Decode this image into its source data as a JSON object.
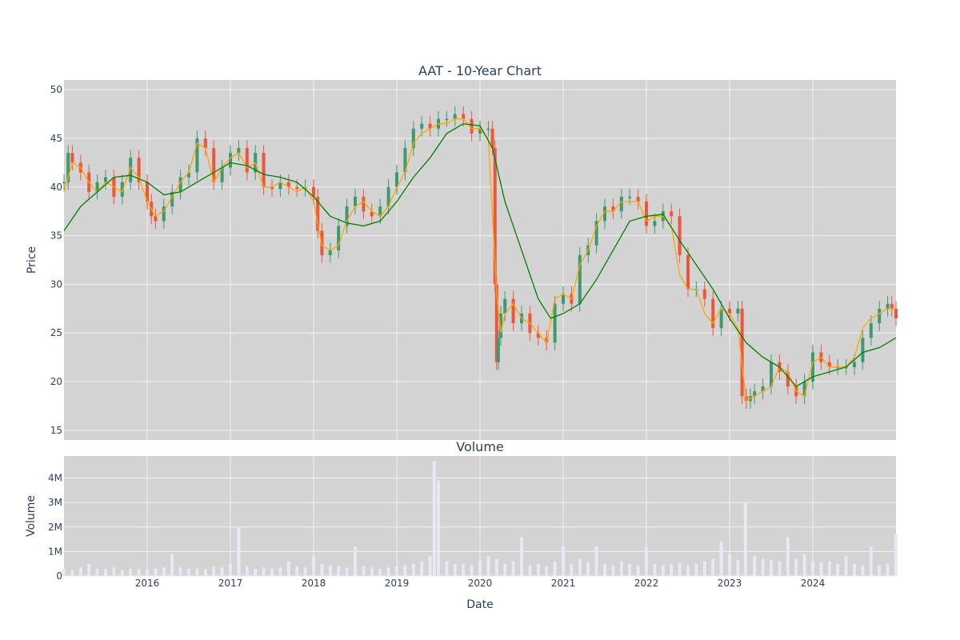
{
  "colors": {
    "plot_background": "#d3d3d3",
    "grid": "#f2f2f2",
    "text": "#2a3f5f",
    "candle_up": "#3d9970",
    "candle_down": "#ef553b",
    "ma_short": "#ffa500",
    "ma_long": "#008000",
    "volume_bars": "#e8e8f3"
  },
  "chart_data": [
    {
      "type": "candlestick",
      "title": "AAT - 10-Year Chart",
      "ylabel": "Price",
      "xlabel": "",
      "ylim": [
        14,
        51
      ],
      "yticks": [
        15,
        20,
        25,
        30,
        35,
        40,
        45,
        50
      ],
      "xlim": [
        2015.0,
        2025.0
      ],
      "grid": true,
      "series": [
        {
          "name": "",
          "style": "candles",
          "x": [
            2015.0,
            2015.05,
            2015.1,
            2015.2,
            2015.3,
            2015.4,
            2015.5,
            2015.6,
            2015.7,
            2015.8,
            2015.9,
            2016.0,
            2016.05,
            2016.1,
            2016.2,
            2016.3,
            2016.4,
            2016.5,
            2016.6,
            2016.7,
            2016.8,
            2016.9,
            2017.0,
            2017.1,
            2017.2,
            2017.3,
            2017.4,
            2017.5,
            2017.6,
            2017.7,
            2017.8,
            2017.9,
            2018.0,
            2018.05,
            2018.1,
            2018.2,
            2018.3,
            2018.4,
            2018.5,
            2018.6,
            2018.7,
            2018.8,
            2018.9,
            2019.0,
            2019.1,
            2019.2,
            2019.3,
            2019.4,
            2019.5,
            2019.6,
            2019.7,
            2019.8,
            2019.9,
            2020.0,
            2020.1,
            2020.15,
            2020.18,
            2020.2,
            2020.22,
            2020.25,
            2020.3,
            2020.4,
            2020.5,
            2020.6,
            2020.7,
            2020.8,
            2020.9,
            2021.0,
            2021.1,
            2021.2,
            2021.3,
            2021.4,
            2021.5,
            2021.6,
            2021.7,
            2021.8,
            2021.9,
            2022.0,
            2022.1,
            2022.2,
            2022.3,
            2022.4,
            2022.5,
            2022.6,
            2022.7,
            2022.8,
            2022.9,
            2023.0,
            2023.1,
            2023.15,
            2023.2,
            2023.25,
            2023.3,
            2023.4,
            2023.5,
            2023.6,
            2023.7,
            2023.8,
            2023.9,
            2024.0,
            2024.1,
            2024.2,
            2024.3,
            2024.4,
            2024.5,
            2024.6,
            2024.7,
            2024.8,
            2024.9,
            2024.95,
            2025.0
          ],
          "values": [
            40.5,
            43.5,
            42.5,
            41.5,
            39.5,
            40.5,
            41.0,
            39.0,
            40.5,
            43.0,
            40.5,
            38.5,
            37.0,
            36.5,
            38.0,
            39.5,
            41.0,
            41.5,
            45.0,
            44.0,
            40.5,
            42.0,
            43.5,
            44.0,
            41.5,
            43.5,
            40.0,
            39.8,
            40.5,
            40.0,
            39.8,
            40.0,
            39.0,
            35.5,
            33.0,
            33.5,
            36.0,
            38.0,
            39.0,
            37.5,
            37.0,
            38.0,
            40.0,
            41.5,
            44.0,
            46.0,
            46.5,
            46.0,
            47.0,
            47.0,
            47.5,
            47.0,
            45.5,
            46.0,
            46.0,
            44.0,
            30.0,
            22.0,
            24.5,
            27.0,
            28.5,
            26.0,
            27.0,
            25.0,
            24.5,
            24.0,
            28.0,
            29.0,
            28.0,
            33.0,
            34.0,
            36.5,
            38.0,
            37.5,
            39.0,
            39.0,
            38.5,
            36.0,
            36.5,
            37.5,
            37.0,
            33.0,
            29.5,
            29.5,
            28.5,
            25.5,
            27.5,
            27.0,
            27.5,
            18.5,
            18.0,
            18.5,
            19.0,
            19.5,
            22.0,
            21.0,
            19.5,
            18.5,
            20.0,
            23.0,
            22.0,
            21.5,
            21.5,
            21.5,
            22.0,
            24.5,
            26.0,
            27.5,
            28.0,
            27.5,
            26.5
          ]
        },
        {
          "name": "",
          "style": "line",
          "color_key": "ma_short",
          "x": [
            2015.0,
            2015.1,
            2015.2,
            2015.3,
            2015.4,
            2015.5,
            2015.6,
            2015.7,
            2015.8,
            2015.9,
            2016.0,
            2016.1,
            2016.2,
            2016.3,
            2016.4,
            2016.5,
            2016.6,
            2016.7,
            2016.8,
            2016.9,
            2017.0,
            2017.1,
            2017.2,
            2017.3,
            2017.4,
            2017.5,
            2017.6,
            2017.7,
            2017.8,
            2017.9,
            2018.0,
            2018.1,
            2018.2,
            2018.3,
            2018.4,
            2018.5,
            2018.6,
            2018.7,
            2018.8,
            2018.9,
            2019.0,
            2019.1,
            2019.2,
            2019.3,
            2019.4,
            2019.5,
            2019.6,
            2019.7,
            2019.8,
            2019.9,
            2020.0,
            2020.1,
            2020.2,
            2020.25,
            2020.3,
            2020.4,
            2020.5,
            2020.6,
            2020.7,
            2020.8,
            2020.9,
            2021.0,
            2021.1,
            2021.2,
            2021.3,
            2021.4,
            2021.5,
            2021.6,
            2021.7,
            2021.8,
            2021.9,
            2022.0,
            2022.1,
            2022.2,
            2022.3,
            2022.4,
            2022.5,
            2022.6,
            2022.7,
            2022.8,
            2022.9,
            2023.0,
            2023.1,
            2023.2,
            2023.3,
            2023.4,
            2023.5,
            2023.6,
            2023.7,
            2023.8,
            2023.9,
            2024.0,
            2024.1,
            2024.2,
            2024.3,
            2024.4,
            2024.5,
            2024.6,
            2024.7,
            2024.8,
            2024.9,
            2025.0
          ],
          "values": [
            39.5,
            42.5,
            42.0,
            40.5,
            39.5,
            40.5,
            40.0,
            39.5,
            42.0,
            41.0,
            38.5,
            37.0,
            37.5,
            39.0,
            40.5,
            41.5,
            44.5,
            44.0,
            40.5,
            42.0,
            43.0,
            43.5,
            42.0,
            42.5,
            40.0,
            40.0,
            40.5,
            40.0,
            39.5,
            40.0,
            38.5,
            34.0,
            33.5,
            34.0,
            36.5,
            38.0,
            38.5,
            37.5,
            37.0,
            38.0,
            40.0,
            41.5,
            44.5,
            45.5,
            46.0,
            46.5,
            46.5,
            47.0,
            47.0,
            46.0,
            46.0,
            45.0,
            29.0,
            25.0,
            27.0,
            28.0,
            26.5,
            26.0,
            25.0,
            24.0,
            28.5,
            29.0,
            28.5,
            32.0,
            33.5,
            36.0,
            37.5,
            37.5,
            38.5,
            38.5,
            38.5,
            36.5,
            37.0,
            37.0,
            36.0,
            31.0,
            29.5,
            29.5,
            27.0,
            26.0,
            27.5,
            27.0,
            25.5,
            18.0,
            18.5,
            19.0,
            19.5,
            21.5,
            21.0,
            19.0,
            18.5,
            22.0,
            22.5,
            21.5,
            21.5,
            21.5,
            22.5,
            25.5,
            26.5,
            27.0,
            27.5,
            27.5
          ]
        },
        {
          "name": "",
          "style": "line",
          "color_key": "ma_long",
          "x": [
            2015.0,
            2015.2,
            2015.4,
            2015.6,
            2015.8,
            2016.0,
            2016.2,
            2016.4,
            2016.6,
            2016.8,
            2017.0,
            2017.2,
            2017.4,
            2017.6,
            2017.8,
            2018.0,
            2018.2,
            2018.4,
            2018.6,
            2018.8,
            2019.0,
            2019.2,
            2019.4,
            2019.6,
            2019.8,
            2020.0,
            2020.15,
            2020.3,
            2020.5,
            2020.7,
            2020.85,
            2021.0,
            2021.2,
            2021.4,
            2021.6,
            2021.8,
            2022.0,
            2022.2,
            2022.4,
            2022.6,
            2022.8,
            2023.0,
            2023.2,
            2023.4,
            2023.6,
            2023.8,
            2024.0,
            2024.2,
            2024.4,
            2024.6,
            2024.8,
            2025.0
          ],
          "values": [
            35.5,
            38.0,
            39.5,
            41.0,
            41.2,
            40.5,
            39.2,
            39.5,
            40.5,
            41.5,
            42.5,
            42.2,
            41.3,
            41.0,
            40.5,
            39.0,
            37.0,
            36.3,
            36.0,
            36.5,
            38.5,
            41.0,
            43.0,
            45.5,
            46.5,
            46.3,
            44.0,
            38.5,
            33.5,
            28.5,
            26.5,
            27.0,
            28.0,
            30.5,
            33.5,
            36.5,
            37.0,
            37.2,
            34.5,
            32.0,
            29.5,
            26.5,
            24.0,
            22.5,
            21.5,
            19.5,
            20.5,
            21.0,
            21.5,
            23.0,
            23.5,
            24.5
          ]
        }
      ]
    },
    {
      "type": "bar",
      "title": "Volume",
      "ylabel": "Volume",
      "xlabel": "Date",
      "ylim": [
        0,
        4900000
      ],
      "yticks": [
        {
          "value": 0,
          "label": "0"
        },
        {
          "value": 1000000,
          "label": "1M"
        },
        {
          "value": 2000000,
          "label": "2M"
        },
        {
          "value": 3000000,
          "label": "3M"
        },
        {
          "value": 4000000,
          "label": "4M"
        }
      ],
      "xticks": [
        {
          "value": 2016,
          "label": "2016"
        },
        {
          "value": 2017,
          "label": "2017"
        },
        {
          "value": 2018,
          "label": "2018"
        },
        {
          "value": 2019,
          "label": "2019"
        },
        {
          "value": 2020,
          "label": "2020"
        },
        {
          "value": 2021,
          "label": "2021"
        },
        {
          "value": 2022,
          "label": "2022"
        },
        {
          "value": 2023,
          "label": "2023"
        },
        {
          "value": 2024,
          "label": "2024"
        }
      ],
      "xlim": [
        2015.0,
        2025.0
      ],
      "grid": true,
      "series": [
        {
          "name": "",
          "x": [
            2015.0,
            2015.1,
            2015.2,
            2015.3,
            2015.4,
            2015.5,
            2015.6,
            2015.7,
            2015.8,
            2015.9,
            2016.0,
            2016.1,
            2016.2,
            2016.3,
            2016.4,
            2016.5,
            2016.6,
            2016.7,
            2016.8,
            2016.9,
            2017.0,
            2017.1,
            2017.2,
            2017.3,
            2017.4,
            2017.5,
            2017.6,
            2017.7,
            2017.8,
            2017.9,
            2018.0,
            2018.1,
            2018.2,
            2018.3,
            2018.4,
            2018.5,
            2018.6,
            2018.7,
            2018.8,
            2018.9,
            2019.0,
            2019.1,
            2019.2,
            2019.3,
            2019.4,
            2019.45,
            2019.5,
            2019.6,
            2019.7,
            2019.8,
            2019.9,
            2020.0,
            2020.1,
            2020.2,
            2020.3,
            2020.4,
            2020.5,
            2020.6,
            2020.7,
            2020.8,
            2020.9,
            2021.0,
            2021.1,
            2021.2,
            2021.3,
            2021.4,
            2021.5,
            2021.6,
            2021.7,
            2021.8,
            2021.9,
            2022.0,
            2022.1,
            2022.2,
            2022.3,
            2022.4,
            2022.5,
            2022.6,
            2022.7,
            2022.8,
            2022.9,
            2023.0,
            2023.1,
            2023.19,
            2023.3,
            2023.4,
            2023.5,
            2023.6,
            2023.7,
            2023.8,
            2023.9,
            2024.0,
            2024.1,
            2024.2,
            2024.3,
            2024.4,
            2024.5,
            2024.6,
            2024.7,
            2024.8,
            2024.9,
            2025.0
          ],
          "values": [
            300000,
            250000,
            350000,
            500000,
            300000,
            280000,
            350000,
            250000,
            300000,
            280000,
            250000,
            300000,
            350000,
            900000,
            350000,
            300000,
            320000,
            280000,
            400000,
            350000,
            500000,
            2000000,
            400000,
            300000,
            350000,
            300000,
            350000,
            600000,
            400000,
            350000,
            800000,
            500000,
            450000,
            400000,
            350000,
            1200000,
            400000,
            350000,
            300000,
            350000,
            400000,
            450000,
            500000,
            600000,
            800000,
            4700000,
            3900000,
            600000,
            500000,
            500000,
            450000,
            600000,
            800000,
            700000,
            500000,
            600000,
            1600000,
            450000,
            500000,
            400000,
            600000,
            1200000,
            500000,
            700000,
            550000,
            1200000,
            500000,
            450000,
            600000,
            500000,
            450000,
            1200000,
            500000,
            450000,
            500000,
            550000,
            450000,
            500000,
            600000,
            700000,
            1400000,
            900000,
            650000,
            3000000,
            800000,
            700000,
            650000,
            600000,
            1600000,
            700000,
            900000,
            600000,
            550000,
            600000,
            500000,
            800000,
            500000,
            450000,
            1200000,
            450000,
            500000,
            1700000
          ]
        }
      ]
    }
  ]
}
